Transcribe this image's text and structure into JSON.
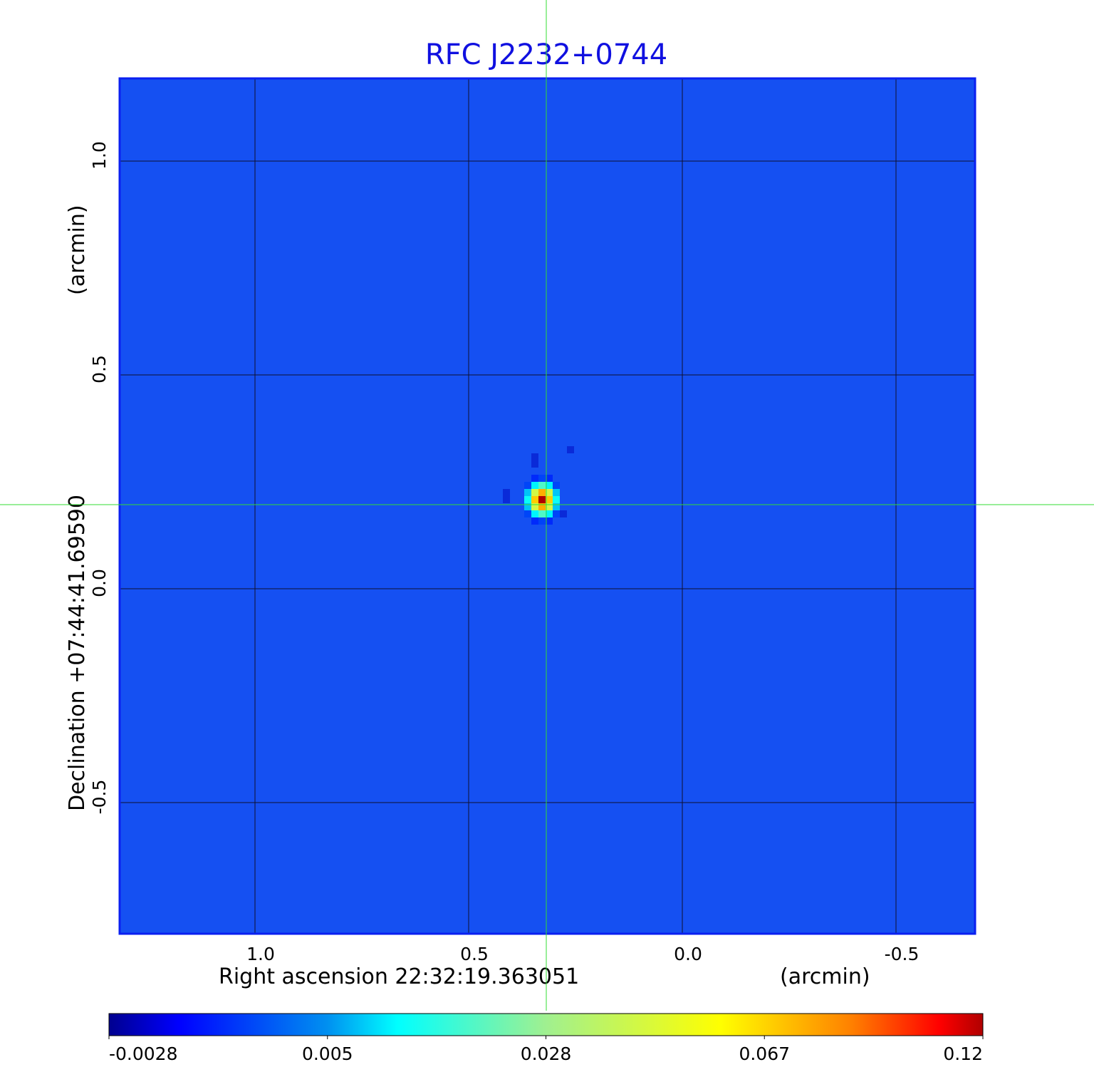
{
  "chart_data": {
    "type": "heatmap",
    "title": "RFC J2232+0744",
    "xlabel": "Right ascension  22:32:19.363051",
    "xunit": "(arcmin)",
    "ylabel": "Declination  +07:44:41.69590",
    "yunit": "(arcmin)",
    "xlim": [
      1.32,
      -0.69
    ],
    "ylim": [
      -0.81,
      1.19
    ],
    "xticks": [
      1.0,
      0.5,
      0.0,
      -0.5
    ],
    "xtick_labels": [
      "1.0",
      "0.5",
      "0.0",
      "-0.5"
    ],
    "yticks": [
      1.0,
      0.5,
      0.0,
      -0.5
    ],
    "ytick_labels": [
      "1.0",
      "0.5",
      "0.0",
      "-0.5"
    ],
    "grid": true,
    "colormap": "jet",
    "colorbar": {
      "ticks": [
        -0.0028,
        0.005,
        0.028,
        0.067,
        0.12
      ],
      "tick_labels": [
        "-0.0028",
        "0.005",
        "0.028",
        "0.067",
        "0.12"
      ],
      "placement": "bottom"
    },
    "background_level": 0.0,
    "source": {
      "x_arcmin": 0.32,
      "y_arcmin": 0.2,
      "peak": 0.12
    },
    "crosshair": {
      "x_arcmin": 0.32,
      "y_arcmin": 0.2,
      "color": "#33dd33"
    },
    "colors": {
      "title": "#1010e0",
      "frame": "#0a20f0",
      "grid": "#101030"
    }
  }
}
